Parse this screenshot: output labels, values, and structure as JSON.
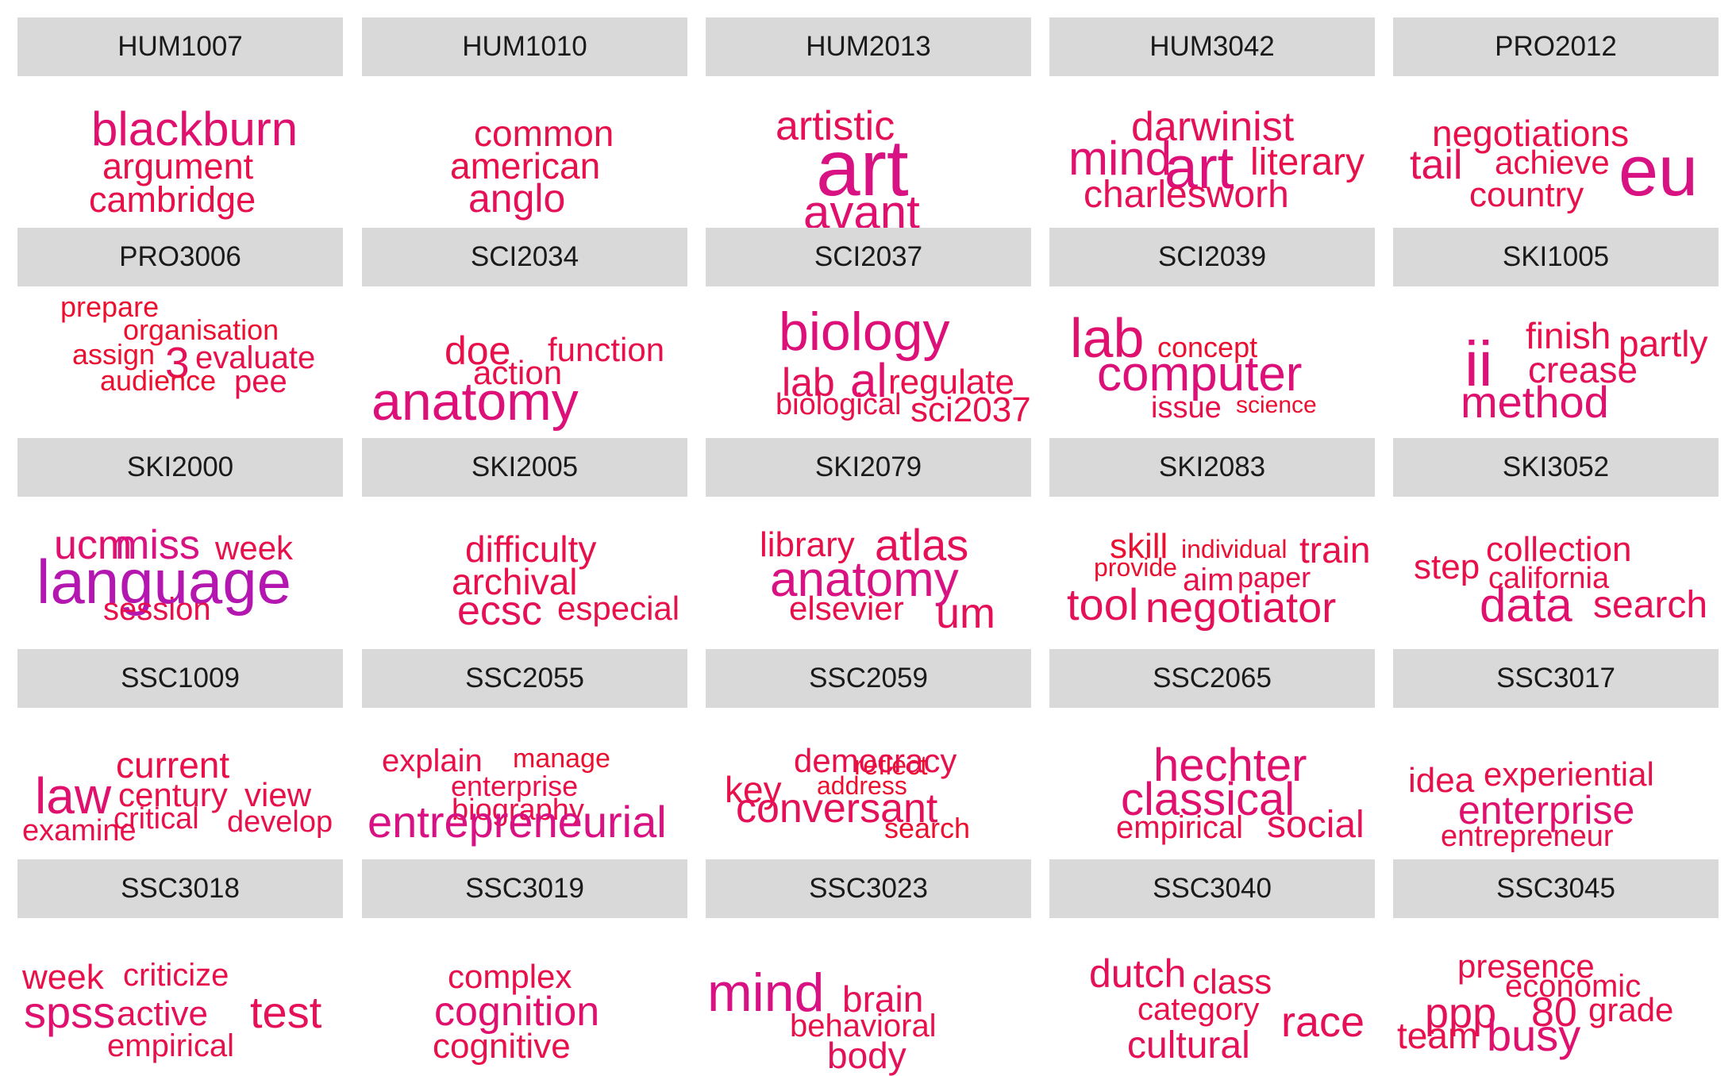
{
  "chart_data": {
    "type": "wordcloud",
    "panels": [
      {
        "code": "HUM1007",
        "words": [
          {
            "text": "blackburn",
            "weight": 60,
            "color": "#e0106e"
          },
          {
            "text": "argument",
            "weight": 45,
            "color": "#e8104a"
          },
          {
            "text": "cambridge",
            "weight": 45,
            "color": "#e8104a"
          }
        ]
      },
      {
        "code": "HUM1010",
        "words": [
          {
            "text": "common",
            "weight": 46,
            "color": "#e8104a"
          },
          {
            "text": "american",
            "weight": 46,
            "color": "#e8104a"
          },
          {
            "text": "anglo",
            "weight": 50,
            "color": "#e41058"
          }
        ]
      },
      {
        "code": "HUM2013",
        "words": [
          {
            "text": "artistic",
            "weight": 52,
            "color": "#e41058"
          },
          {
            "text": "art",
            "weight": 100,
            "color": "#d81282"
          },
          {
            "text": "avant",
            "weight": 60,
            "color": "#e0106e"
          }
        ]
      },
      {
        "code": "HUM3042",
        "words": [
          {
            "text": "darwinist",
            "weight": 52,
            "color": "#e41058"
          },
          {
            "text": "mind",
            "weight": 60,
            "color": "#e0106e"
          },
          {
            "text": "art",
            "weight": 75,
            "color": "#dc1078"
          },
          {
            "text": "literary",
            "weight": 48,
            "color": "#e8104a"
          },
          {
            "text": "charlesworh",
            "weight": 48,
            "color": "#e41058"
          }
        ]
      },
      {
        "code": "PRO2012",
        "words": [
          {
            "text": "negotiations",
            "weight": 46,
            "color": "#e8104a"
          },
          {
            "text": "tail",
            "weight": 52,
            "color": "#e41058"
          },
          {
            "text": "achieve",
            "weight": 42,
            "color": "#e8104a"
          },
          {
            "text": "country",
            "weight": 44,
            "color": "#e8104a"
          },
          {
            "text": "eu",
            "weight": 90,
            "color": "#d81282"
          }
        ]
      },
      {
        "code": "PRO3006",
        "words": [
          {
            "text": "prepare",
            "weight": 36,
            "color": "#ec1030"
          },
          {
            "text": "organisation",
            "weight": 36,
            "color": "#ec1030"
          },
          {
            "text": "assign",
            "weight": 36,
            "color": "#ec1030"
          },
          {
            "text": "3",
            "weight": 55,
            "color": "#e41058"
          },
          {
            "text": "evaluate",
            "weight": 40,
            "color": "#e8104a"
          },
          {
            "text": "audience",
            "weight": 36,
            "color": "#ec1030"
          },
          {
            "text": "pee",
            "weight": 40,
            "color": "#e8104a"
          }
        ]
      },
      {
        "code": "SCI2034",
        "words": [
          {
            "text": "doe",
            "weight": 50,
            "color": "#e8104a"
          },
          {
            "text": "function",
            "weight": 42,
            "color": "#e8104a"
          },
          {
            "text": "action",
            "weight": 42,
            "color": "#e8104a"
          },
          {
            "text": "anatomy",
            "weight": 68,
            "color": "#dc1078"
          }
        ]
      },
      {
        "code": "SCI2037",
        "words": [
          {
            "text": "biology",
            "weight": 68,
            "color": "#dc1078"
          },
          {
            "text": "lab",
            "weight": 50,
            "color": "#e41058"
          },
          {
            "text": "al",
            "weight": 60,
            "color": "#e0106e"
          },
          {
            "text": "regulate",
            "weight": 44,
            "color": "#e8104a"
          },
          {
            "text": "biological",
            "weight": 38,
            "color": "#e8104a"
          },
          {
            "text": "sci2037",
            "weight": 44,
            "color": "#e8104a"
          }
        ]
      },
      {
        "code": "SCI2039",
        "words": [
          {
            "text": "lab",
            "weight": 70,
            "color": "#e0106e"
          },
          {
            "text": "concept",
            "weight": 36,
            "color": "#ec1030"
          },
          {
            "text": "computer",
            "weight": 62,
            "color": "#dc1078"
          },
          {
            "text": "issue",
            "weight": 38,
            "color": "#e8104a"
          },
          {
            "text": "science",
            "weight": 30,
            "color": "#ec1030"
          }
        ]
      },
      {
        "code": "SKI1005",
        "words": [
          {
            "text": "ii",
            "weight": 80,
            "color": "#dc1078"
          },
          {
            "text": "finish",
            "weight": 46,
            "color": "#e8104a"
          },
          {
            "text": "partly",
            "weight": 46,
            "color": "#e8104a"
          },
          {
            "text": "crease",
            "weight": 46,
            "color": "#e41058"
          },
          {
            "text": "method",
            "weight": 56,
            "color": "#e0106e"
          }
        ]
      },
      {
        "code": "SKI2000",
        "words": [
          {
            "text": "ucm",
            "weight": 52,
            "color": "#e0106e"
          },
          {
            "text": "miss",
            "weight": 52,
            "color": "#d81282"
          },
          {
            "text": "week",
            "weight": 42,
            "color": "#e8104a"
          },
          {
            "text": "language",
            "weight": 78,
            "color": "#b416b0"
          },
          {
            "text": "session",
            "weight": 40,
            "color": "#e8104a"
          }
        ]
      },
      {
        "code": "SKI2005",
        "words": [
          {
            "text": "difficulty",
            "weight": 46,
            "color": "#e8104a"
          },
          {
            "text": "archival",
            "weight": 46,
            "color": "#e8104a"
          },
          {
            "text": "ecsc",
            "weight": 52,
            "color": "#e41058"
          },
          {
            "text": "especial",
            "weight": 42,
            "color": "#e8104a"
          }
        ]
      },
      {
        "code": "SKI2079",
        "words": [
          {
            "text": "library",
            "weight": 44,
            "color": "#e8104a"
          },
          {
            "text": "atlas",
            "weight": 56,
            "color": "#e41058"
          },
          {
            "text": "anatomy",
            "weight": 62,
            "color": "#d81282"
          },
          {
            "text": "elsevier",
            "weight": 42,
            "color": "#e8104a"
          },
          {
            "text": "um",
            "weight": 54,
            "color": "#e41058"
          }
        ]
      },
      {
        "code": "SKI2083",
        "words": [
          {
            "text": "skill",
            "weight": 44,
            "color": "#ec1030"
          },
          {
            "text": "individual",
            "weight": 32,
            "color": "#ec1030"
          },
          {
            "text": "train",
            "weight": 46,
            "color": "#e8104a"
          },
          {
            "text": "provide",
            "weight": 32,
            "color": "#ec1030"
          },
          {
            "text": "aim",
            "weight": 40,
            "color": "#e8104a"
          },
          {
            "text": "paper",
            "weight": 36,
            "color": "#e8104a"
          },
          {
            "text": "tool",
            "weight": 56,
            "color": "#e41058"
          },
          {
            "text": "negotiator",
            "weight": 54,
            "color": "#e41058"
          }
        ]
      },
      {
        "code": "SKI3052",
        "words": [
          {
            "text": "step",
            "weight": 44,
            "color": "#e8104a"
          },
          {
            "text": "collection",
            "weight": 44,
            "color": "#e8104a"
          },
          {
            "text": "california",
            "weight": 38,
            "color": "#e8104a"
          },
          {
            "text": "data",
            "weight": 60,
            "color": "#e0106e"
          },
          {
            "text": "search",
            "weight": 48,
            "color": "#e41058"
          }
        ]
      },
      {
        "code": "SSC1009",
        "words": [
          {
            "text": "current",
            "weight": 46,
            "color": "#e8104a"
          },
          {
            "text": "law",
            "weight": 64,
            "color": "#e0106e"
          },
          {
            "text": "century",
            "weight": 42,
            "color": "#e8104a"
          },
          {
            "text": "view",
            "weight": 42,
            "color": "#e8104a"
          },
          {
            "text": "critical",
            "weight": 38,
            "color": "#e8104a"
          },
          {
            "text": "develop",
            "weight": 38,
            "color": "#e8104a"
          },
          {
            "text": "examine",
            "weight": 38,
            "color": "#e8104a"
          }
        ]
      },
      {
        "code": "SSC2055",
        "words": [
          {
            "text": "explain",
            "weight": 40,
            "color": "#e8104a"
          },
          {
            "text": "manage",
            "weight": 34,
            "color": "#ec1030"
          },
          {
            "text": "enterprise",
            "weight": 36,
            "color": "#e8104a"
          },
          {
            "text": "biography",
            "weight": 38,
            "color": "#e8104a"
          },
          {
            "text": "entrepreneurial",
            "weight": 56,
            "color": "#d81282"
          }
        ]
      },
      {
        "code": "SSC2059",
        "words": [
          {
            "text": "reflect",
            "weight": 34,
            "color": "#ec1030"
          },
          {
            "text": "key",
            "weight": 46,
            "color": "#e8104a"
          },
          {
            "text": "democracy",
            "weight": 42,
            "color": "#e8104a"
          },
          {
            "text": "address",
            "weight": 32,
            "color": "#ec1030"
          },
          {
            "text": "conversant",
            "weight": 52,
            "color": "#e41058"
          },
          {
            "text": "search",
            "weight": 36,
            "color": "#ec1030"
          }
        ]
      },
      {
        "code": "SSC2065",
        "words": [
          {
            "text": "hechter",
            "weight": 58,
            "color": "#e0106e"
          },
          {
            "text": "classical",
            "weight": 58,
            "color": "#e0106e"
          },
          {
            "text": "empirical",
            "weight": 40,
            "color": "#e8104a"
          },
          {
            "text": "social",
            "weight": 48,
            "color": "#e41058"
          }
        ]
      },
      {
        "code": "SSC3017",
        "words": [
          {
            "text": "idea",
            "weight": 44,
            "color": "#e8104a"
          },
          {
            "text": "experiential",
            "weight": 42,
            "color": "#e8104a"
          },
          {
            "text": "enterprise",
            "weight": 50,
            "color": "#e0106e"
          },
          {
            "text": "entrepreneur",
            "weight": 38,
            "color": "#e8104a"
          }
        ]
      },
      {
        "code": "SSC3018",
        "words": [
          {
            "text": "week",
            "weight": 44,
            "color": "#e8104a"
          },
          {
            "text": "criticize",
            "weight": 40,
            "color": "#e8104a"
          },
          {
            "text": "spss",
            "weight": 56,
            "color": "#e0106e"
          },
          {
            "text": "active",
            "weight": 44,
            "color": "#e41058"
          },
          {
            "text": "test",
            "weight": 56,
            "color": "#e41058"
          },
          {
            "text": "empirical",
            "weight": 40,
            "color": "#e8104a"
          }
        ]
      },
      {
        "code": "SSC3019",
        "words": [
          {
            "text": "complex",
            "weight": 42,
            "color": "#e8104a"
          },
          {
            "text": "cognition",
            "weight": 52,
            "color": "#e0106e"
          },
          {
            "text": "cognitive",
            "weight": 44,
            "color": "#e8104a"
          }
        ]
      },
      {
        "code": "SSC3023",
        "words": [
          {
            "text": "mind",
            "weight": 68,
            "color": "#d81282"
          },
          {
            "text": "brain",
            "weight": 46,
            "color": "#e41058"
          },
          {
            "text": "behavioral",
            "weight": 40,
            "color": "#e8104a"
          },
          {
            "text": "body",
            "weight": 46,
            "color": "#e41058"
          }
        ]
      },
      {
        "code": "SSC3040",
        "words": [
          {
            "text": "dutch",
            "weight": 50,
            "color": "#e41058"
          },
          {
            "text": "class",
            "weight": 44,
            "color": "#e8104a"
          },
          {
            "text": "category",
            "weight": 40,
            "color": "#e8104a"
          },
          {
            "text": "race",
            "weight": 54,
            "color": "#e41058"
          },
          {
            "text": "cultural",
            "weight": 48,
            "color": "#e41058"
          }
        ]
      },
      {
        "code": "SSC3045",
        "words": [
          {
            "text": "presence",
            "weight": 42,
            "color": "#e8104a"
          },
          {
            "text": "economic",
            "weight": 40,
            "color": "#e8104a"
          },
          {
            "text": "ppp",
            "weight": 54,
            "color": "#e41058"
          },
          {
            "text": "80",
            "weight": 52,
            "color": "#e41058"
          },
          {
            "text": "grade",
            "weight": 42,
            "color": "#e8104a"
          },
          {
            "text": "team",
            "weight": 46,
            "color": "#e8104a"
          },
          {
            "text": "busy",
            "weight": 56,
            "color": "#e0106e"
          }
        ]
      }
    ]
  }
}
